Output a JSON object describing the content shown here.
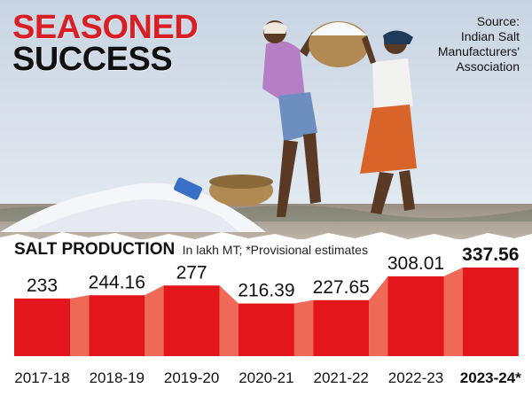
{
  "headline": {
    "line1": "SEASONED",
    "line2": "SUCCESS"
  },
  "source": {
    "lines": [
      "Source:",
      "Indian Salt",
      "Manufacturers'",
      "Association"
    ]
  },
  "chart_data": {
    "type": "bar",
    "title": "SALT PRODUCTION",
    "subtitle": "In lakh MT; *Provisional estimates",
    "categories": [
      "2017-18",
      "2018-19",
      "2019-20",
      "2020-21",
      "2021-22",
      "2022-23",
      "2023-24*"
    ],
    "values": [
      233,
      244.16,
      277,
      216.39,
      227.65,
      308.01,
      337.56
    ],
    "value_labels": [
      "233",
      "244.16",
      "277",
      "216.39",
      "227.65",
      "308.01",
      "337.56"
    ],
    "highlight_index": 6,
    "xlabel": "",
    "ylabel": "",
    "grid": false,
    "legend": "none"
  },
  "colors": {
    "bar": "#e3171b",
    "connector": "#ee6a57",
    "headline_red": "#d81f26",
    "text": "#111111"
  }
}
